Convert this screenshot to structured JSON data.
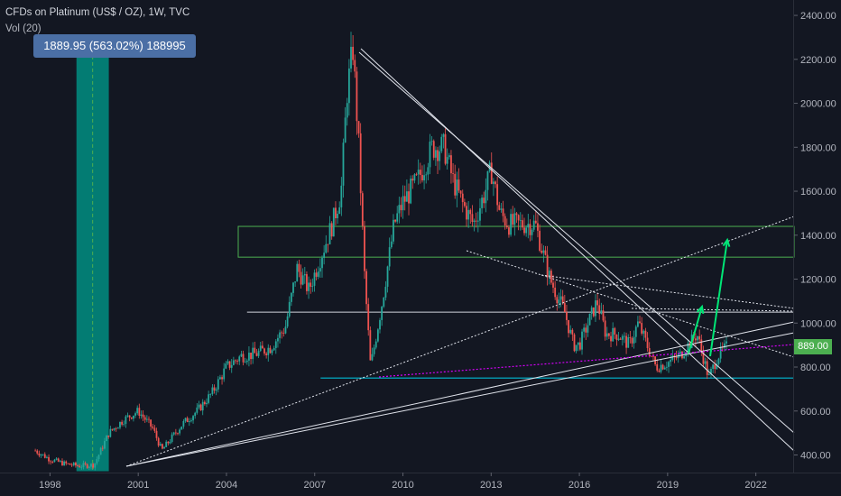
{
  "header": {
    "title": "CFDs on Platinum (US$ / OZ), 1W, TVC",
    "volume": "Vol (20)"
  },
  "tooltip": {
    "text": "1889.95 (563.02%) 188995"
  },
  "price_badge": {
    "value": "889.00"
  },
  "colors": {
    "background": "#131722",
    "up": "#26a69a",
    "down": "#ef5350",
    "zone": "#4caf50",
    "arrow": "#00e676",
    "support": "#00bcd4",
    "pink": "#d500f9",
    "highlight": "#009688"
  },
  "chart_data": {
    "type": "line",
    "title": "CFDs on Platinum (US$ / OZ), 1W, TVC",
    "xlabel": "",
    "ylabel": "",
    "x_ticks": [
      "1998",
      "2001",
      "2004",
      "2007",
      "2010",
      "2013",
      "2016",
      "2019",
      "2022"
    ],
    "y_ticks": [
      400,
      600,
      800,
      1000,
      1200,
      1400,
      1600,
      1800,
      2000,
      2200,
      2400
    ],
    "y_tick_labels": [
      "400.00",
      "600.00",
      "800.00",
      "1000.00",
      "1200.00",
      "1400.00",
      "1600.00",
      "1800.00",
      "2000.00",
      "2200.00",
      "2400.00"
    ],
    "xlim": [
      1996.3,
      2023.3
    ],
    "ylim": [
      320,
      2470
    ],
    "grid": false,
    "series": [
      {
        "x": [
          1997.5,
          1998.0,
          1998.5,
          1999.0,
          1999.5,
          2000.0,
          2000.5,
          2001.0,
          2001.5,
          2001.8,
          2002.5,
          2003.0,
          2003.5,
          2004.0,
          2004.5,
          2005.0,
          2005.5,
          2006.0,
          2006.4,
          2006.8,
          2007.2,
          2007.6,
          2007.9,
          2008.1,
          2008.3,
          2008.5,
          2008.7,
          2008.9,
          2009.3,
          2009.7,
          2010.0,
          2010.5,
          2011.0,
          2011.4,
          2011.7,
          2012.0,
          2012.4,
          2012.8,
          2013.0,
          2013.3,
          2013.6,
          2014.0,
          2014.5,
          2014.8,
          2015.0,
          2015.5,
          2015.8,
          2016.0,
          2016.3,
          2016.6,
          2016.9,
          2017.3,
          2017.7,
          2018.0,
          2018.3,
          2018.6,
          2019.0,
          2019.4,
          2019.7,
          2020.0,
          2020.2,
          2020.4,
          2020.7,
          2021.0
        ],
        "y": [
          420,
          380,
          360,
          350,
          355,
          500,
          560,
          600,
          520,
          420,
          540,
          600,
          680,
          800,
          850,
          860,
          890,
          980,
          1250,
          1150,
          1300,
          1450,
          1600,
          2050,
          2250,
          1800,
          1200,
          800,
          1100,
          1450,
          1550,
          1650,
          1800,
          1800,
          1650,
          1550,
          1450,
          1600,
          1700,
          1500,
          1450,
          1450,
          1450,
          1300,
          1200,
          1050,
          900,
          900,
          1000,
          1100,
          950,
          950,
          900,
          1000,
          900,
          800,
          820,
          850,
          900,
          950,
          850,
          750,
          850,
          890
        ]
      }
    ],
    "annotations": {
      "tooltip": "1889.95 (563.02%) 188995",
      "last_price": "889.00",
      "resistance_zone": [
        1300,
        1440
      ],
      "horizontal_level": 1050,
      "support_level": 750,
      "measure_range": [
        326,
        2216
      ]
    }
  }
}
